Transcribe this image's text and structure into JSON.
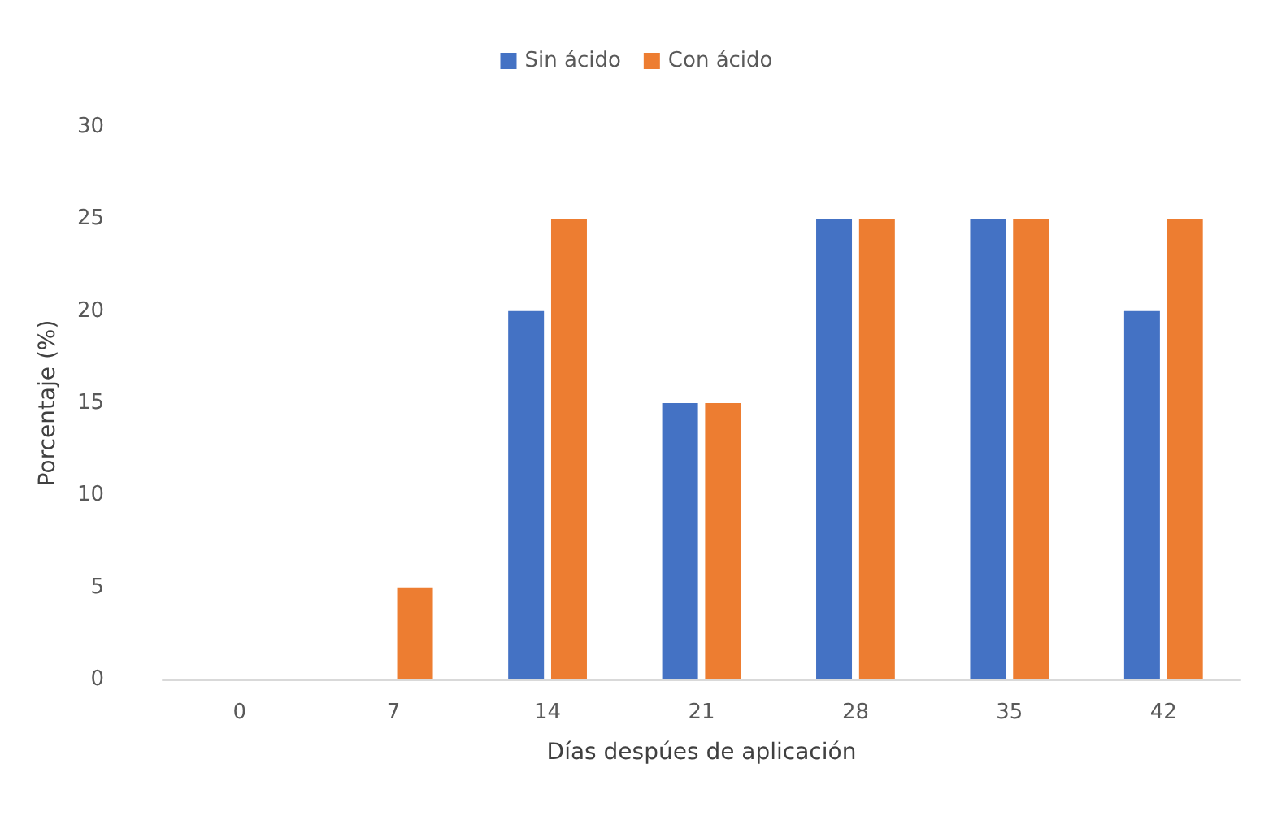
{
  "chart_data": {
    "type": "bar",
    "xlabel": "Días despúes de aplicación",
    "ylabel": "Porcentaje (%)",
    "categories": [
      "0",
      "7",
      "14",
      "21",
      "28",
      "35",
      "42"
    ],
    "series": [
      {
        "name": "Sin ácido",
        "color": "#4472c4",
        "values": [
          0,
          0,
          20,
          15,
          25,
          25,
          20
        ]
      },
      {
        "name": "Con ácido",
        "color": "#ed7d31",
        "values": [
          0,
          5,
          25,
          15,
          25,
          25,
          25
        ]
      }
    ],
    "ylim": [
      0,
      30
    ],
    "yticks": [
      0,
      5,
      10,
      15,
      20,
      25,
      30
    ],
    "grid": false,
    "legend": "top"
  }
}
